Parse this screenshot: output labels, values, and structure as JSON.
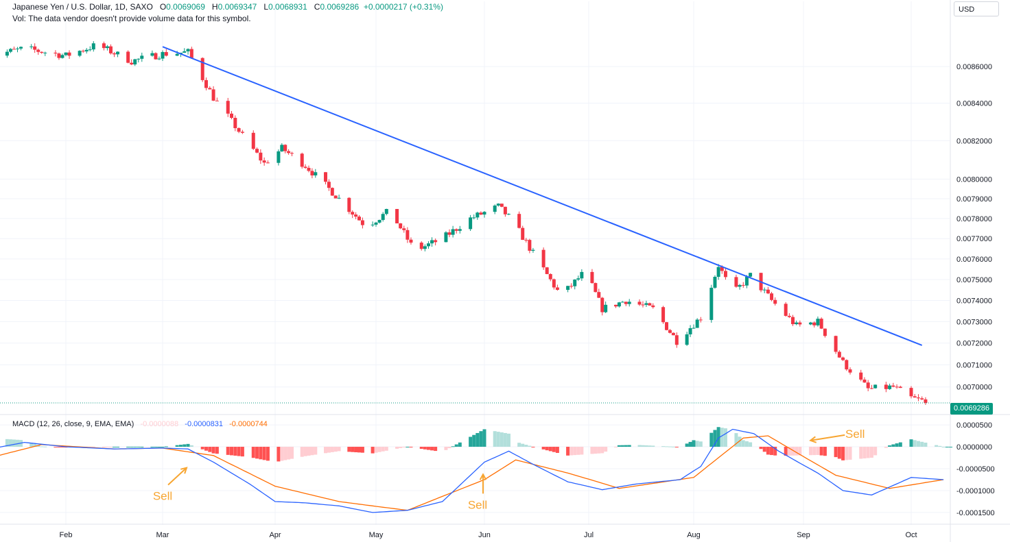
{
  "header": {
    "symbol": "Japanese Yen / U.S. Dollar, 1D, SAXO",
    "o_label": "O",
    "o_value": "0.0069069",
    "h_label": "H",
    "h_value": "0.0069347",
    "l_label": "L",
    "l_value": "0.0068931",
    "c_label": "C",
    "c_value": "0.0069286",
    "change": "+0.0000217 (+0.31%)",
    "vol_note": "Vol: The data vendor doesn't provide volume data for this symbol."
  },
  "currency_label": "USD",
  "last_price_label": "0.0069286",
  "colors": {
    "up": "#089981",
    "down": "#f23645",
    "trendline": "#2962ff",
    "macd_line": "#2962ff",
    "signal_line": "#ff6d00",
    "annotation": "#f7a531",
    "hist_up_strong": "#26a69a",
    "hist_up_weak": "#b2dfdb",
    "hist_down_strong": "#ff5252",
    "hist_down_weak": "#ffcdd2"
  },
  "chart_data": [
    {
      "type": "candlestick",
      "title": "Japanese Yen / U.S. Dollar, 1D, SAXO",
      "x_ticks": [
        "Feb",
        "Mar",
        "Apr",
        "May",
        "Jun",
        "Jul",
        "Aug",
        "Sep",
        "Oct"
      ],
      "y_ticks": [
        "0.0086000",
        "0.0084000",
        "0.0082000",
        "0.0080000",
        "0.0079000",
        "0.0078000",
        "0.0077000",
        "0.0076000",
        "0.0075000",
        "0.0074000",
        "0.0073000",
        "0.0072000",
        "0.0071000",
        "0.0070000"
      ],
      "y_range": [
        0.00688,
        0.00885
      ],
      "y_scale": "log",
      "grid": true,
      "trendline": {
        "from": [
          "Mar 1",
          0.00871
        ],
        "to": [
          "Oct 4",
          0.00719
        ]
      },
      "waypoints": [
        {
          "date": "Jan 10",
          "price": 0.00866
        },
        {
          "date": "Jan 20",
          "price": 0.0087
        },
        {
          "date": "Feb 1",
          "price": 0.00866
        },
        {
          "date": "Feb 10",
          "price": 0.00872
        },
        {
          "date": "Feb 20",
          "price": 0.00863
        },
        {
          "date": "Mar 1",
          "price": 0.00867
        },
        {
          "date": "Mar 8",
          "price": 0.00868
        },
        {
          "date": "Mar 15",
          "price": 0.00843
        },
        {
          "date": "Mar 24",
          "price": 0.0082
        },
        {
          "date": "Mar 29",
          "price": 0.00808
        },
        {
          "date": "Apr 3",
          "price": 0.00816
        },
        {
          "date": "Apr 10",
          "price": 0.00807
        },
        {
          "date": "Apr 20",
          "price": 0.0079
        },
        {
          "date": "Apr 28",
          "price": 0.00776
        },
        {
          "date": "May 5",
          "price": 0.00784
        },
        {
          "date": "May 12",
          "price": 0.00764
        },
        {
          "date": "May 20",
          "price": 0.0077
        },
        {
          "date": "May 28",
          "price": 0.0078
        },
        {
          "date": "Jun 5",
          "price": 0.00786
        },
        {
          "date": "Jun 9",
          "price": 0.00779
        },
        {
          "date": "Jun 16",
          "price": 0.0076
        },
        {
          "date": "Jun 23",
          "price": 0.00742
        },
        {
          "date": "Jun 30",
          "price": 0.00754
        },
        {
          "date": "Jul 5",
          "price": 0.00736
        },
        {
          "date": "Jul 12",
          "price": 0.0074
        },
        {
          "date": "Jul 20",
          "price": 0.00736
        },
        {
          "date": "Jul 27",
          "price": 0.00721
        },
        {
          "date": "Aug 3",
          "price": 0.00732
        },
        {
          "date": "Aug 8",
          "price": 0.00757
        },
        {
          "date": "Aug 12",
          "price": 0.00743
        },
        {
          "date": "Aug 17",
          "price": 0.00752
        },
        {
          "date": "Aug 23",
          "price": 0.0074
        },
        {
          "date": "Aug 30",
          "price": 0.00728
        },
        {
          "date": "Sep 5",
          "price": 0.0073
        },
        {
          "date": "Sep 12",
          "price": 0.00711
        },
        {
          "date": "Sep 19",
          "price": 0.00699
        },
        {
          "date": "Sep 26",
          "price": 0.007
        },
        {
          "date": "Oct 1",
          "price": 0.00695
        },
        {
          "date": "Oct 6",
          "price": 0.00693
        }
      ],
      "last_close": 0.0069286
    },
    {
      "type": "macd",
      "label": "MACD (12, 26, close, 9, EMA, EMA)",
      "histogram_value": "-0.0000088",
      "macd_value": "-0.0000831",
      "signal_value": "-0.0000744",
      "y_ticks": [
        "0.0000500",
        "0.0000000",
        "-0.0000500",
        "-0.0001000",
        "-0.0001500"
      ],
      "y_range": [
        -0.000172,
        7.2e-05
      ],
      "macd_line": [
        {
          "date": "Jan 10",
          "value": -5e-06
        },
        {
          "date": "Jan 20",
          "value": 1e-05
        },
        {
          "date": "Feb 1",
          "value": 0.0
        },
        {
          "date": "Feb 15",
          "value": -5e-06
        },
        {
          "date": "Mar 1",
          "value": -3e-06
        },
        {
          "date": "Mar 8",
          "value": -5e-06
        },
        {
          "date": "Mar 15",
          "value": -3.5e-05
        },
        {
          "date": "Mar 25",
          "value": -8.5e-05
        },
        {
          "date": "Apr 1",
          "value": -0.000125
        },
        {
          "date": "Apr 10",
          "value": -0.000128
        },
        {
          "date": "Apr 20",
          "value": -0.000135
        },
        {
          "date": "Apr 30",
          "value": -0.00015
        },
        {
          "date": "May 10",
          "value": -0.000145
        },
        {
          "date": "May 20",
          "value": -0.000125
        },
        {
          "date": "Jun 1",
          "value": -3.5e-05
        },
        {
          "date": "Jun 8",
          "value": -1e-05
        },
        {
          "date": "Jun 15",
          "value": -4e-05
        },
        {
          "date": "Jun 25",
          "value": -8e-05
        },
        {
          "date": "Jul 5",
          "value": -9.8e-05
        },
        {
          "date": "Jul 15",
          "value": -8.5e-05
        },
        {
          "date": "Jul 28",
          "value": -7.5e-05
        },
        {
          "date": "Aug 3",
          "value": -4.5e-05
        },
        {
          "date": "Aug 8",
          "value": 2e-05
        },
        {
          "date": "Aug 12",
          "value": 4e-05
        },
        {
          "date": "Aug 18",
          "value": 3e-05
        },
        {
          "date": "Aug 25",
          "value": -1e-05
        },
        {
          "date": "Sep 5",
          "value": -6e-05
        },
        {
          "date": "Sep 12",
          "value": -0.0001
        },
        {
          "date": "Sep 20",
          "value": -0.00011
        },
        {
          "date": "Oct 1",
          "value": -7e-05
        },
        {
          "date": "Oct 10",
          "value": -7.5e-05
        }
      ],
      "signal_line": [
        {
          "date": "Jan 10",
          "value": -2.5e-05
        },
        {
          "date": "Jan 25",
          "value": 5e-06
        },
        {
          "date": "Feb 15",
          "value": -5e-06
        },
        {
          "date": "Mar 1",
          "value": -3e-06
        },
        {
          "date": "Mar 15",
          "value": -2e-05
        },
        {
          "date": "Apr 1",
          "value": -9e-05
        },
        {
          "date": "Apr 20",
          "value": -0.000125
        },
        {
          "date": "May 10",
          "value": -0.000145
        },
        {
          "date": "Jun 1",
          "value": -7.5e-05
        },
        {
          "date": "Jun 10",
          "value": -3e-05
        },
        {
          "date": "Jun 25",
          "value": -6e-05
        },
        {
          "date": "Jul 10",
          "value": -9.5e-05
        },
        {
          "date": "Aug 1",
          "value": -7e-05
        },
        {
          "date": "Aug 15",
          "value": 2e-05
        },
        {
          "date": "Aug 22",
          "value": 2.5e-05
        },
        {
          "date": "Sep 10",
          "value": -6.5e-05
        },
        {
          "date": "Sep 25",
          "value": -9.5e-05
        },
        {
          "date": "Oct 10",
          "value": -7.5e-05
        }
      ]
    }
  ],
  "annotations": [
    {
      "text": "Sell",
      "date": "Mar 1",
      "value": -4e-05
    },
    {
      "text": "Sell",
      "date": "Jun 1",
      "value": -6e-05
    },
    {
      "text": "Sell",
      "date": "Sep 2",
      "value": 3e-05
    }
  ]
}
